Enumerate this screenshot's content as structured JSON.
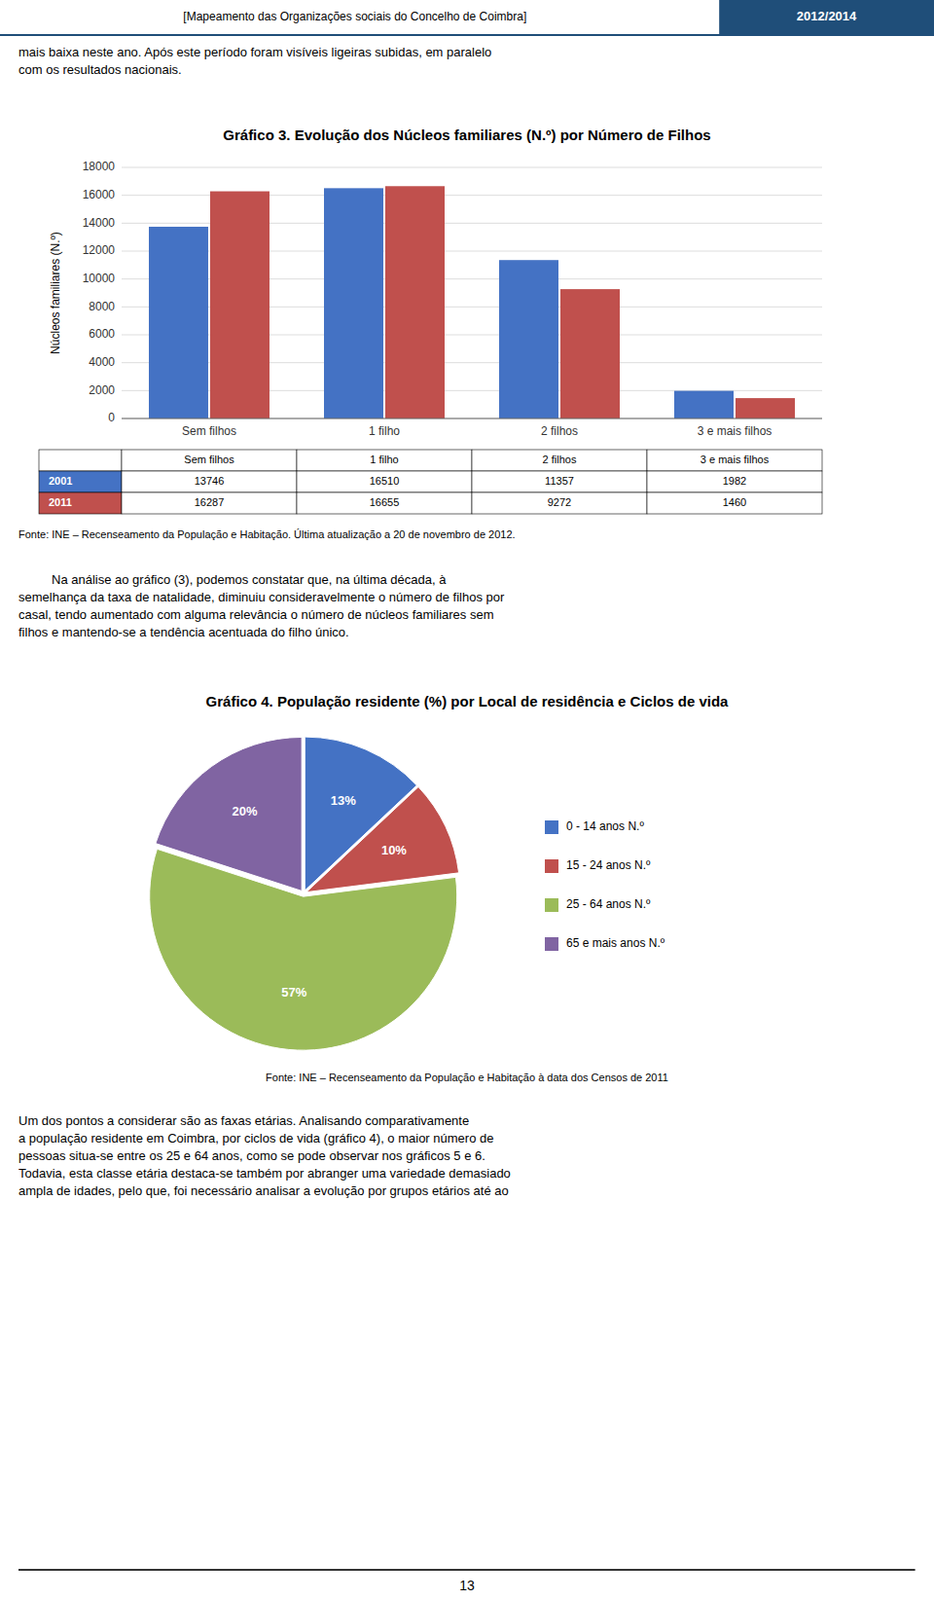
{
  "page": {
    "title": "[Mapeamento das Organizações sociais do Concelho de Coimbra]",
    "year": "2012/2014",
    "number": "13",
    "header_color": "#1F4E79",
    "intro": [
      "mais baixa neste ano. Após este período foram visíveis ligeiras subidas, em paralelo",
      "com os resultados nacionais."
    ],
    "body": [
      "Na análise ao gráfico (3), podemos constatar que, na última década, à",
      "semelhança da taxa de natalidade, diminuiu consideravelmente o número de filhos por",
      "casal, tendo aumentado com alguma relevância o número de núcleos familiares sem",
      "filhos e mantendo-se a tendência acentuada do filho único."
    ],
    "footer": [
      "Um dos pontos a considerar são as faxas etárias. Analisando comparativamente",
      "a população residente em Coimbra, por ciclos de vida (gráfico 4), o maior número de",
      "pessoas situa-se entre os 25 e 64 anos, como se pode observar nos gráficos 5 e 6.",
      "Todavia, esta classe etária destaca-se também por abranger uma variedade demasiado",
      "ampla de idades, pelo que, foi necessário analisar a evolução por grupos etários até ao"
    ]
  },
  "chart_data": [
    {
      "type": "bar",
      "title": "Gráfico 3. Evolução dos Núcleos familiares (N.º) por Número de Filhos",
      "categories": [
        "Sem filhos",
        "1 filho",
        "2 filhos",
        "3 e mais filhos"
      ],
      "series": [
        {
          "name": "2001",
          "color": "#4472C4",
          "values": [
            13746,
            16510,
            11357,
            1982
          ]
        },
        {
          "name": "2011",
          "color": "#C0504D",
          "values": [
            16287,
            16655,
            9272,
            1460
          ]
        }
      ],
      "ylabel": "Núcleos familiares (N.º)",
      "ylim": [
        0,
        18000
      ],
      "yticks": [
        0,
        2000,
        4000,
        6000,
        8000,
        10000,
        12000,
        14000,
        16000,
        18000
      ],
      "grid": true,
      "source": "Fonte: INE – Recenseamento da População e Habitação. Última atualização a 20 de novembro de 2012."
    },
    {
      "type": "pie",
      "title": "Gráfico 4. População residente (%) por Local de residência e Ciclos de vida",
      "categories": [
        "0 - 14 anos N.º",
        "15 - 24 anos N.º",
        "25 - 64 anos N.º",
        "65 e mais anos N.º"
      ],
      "values": [
        13,
        10,
        57,
        20
      ],
      "value_labels": [
        "13%",
        "10%",
        "57%",
        "20%"
      ],
      "colors": [
        "#4472C4",
        "#C0504D",
        "#9BBB59",
        "#8064A2"
      ],
      "data_labels": true,
      "legend": "right",
      "source": "Fonte: INE – Recenseamento da População e Habitação à data dos Censos de 2011"
    }
  ]
}
